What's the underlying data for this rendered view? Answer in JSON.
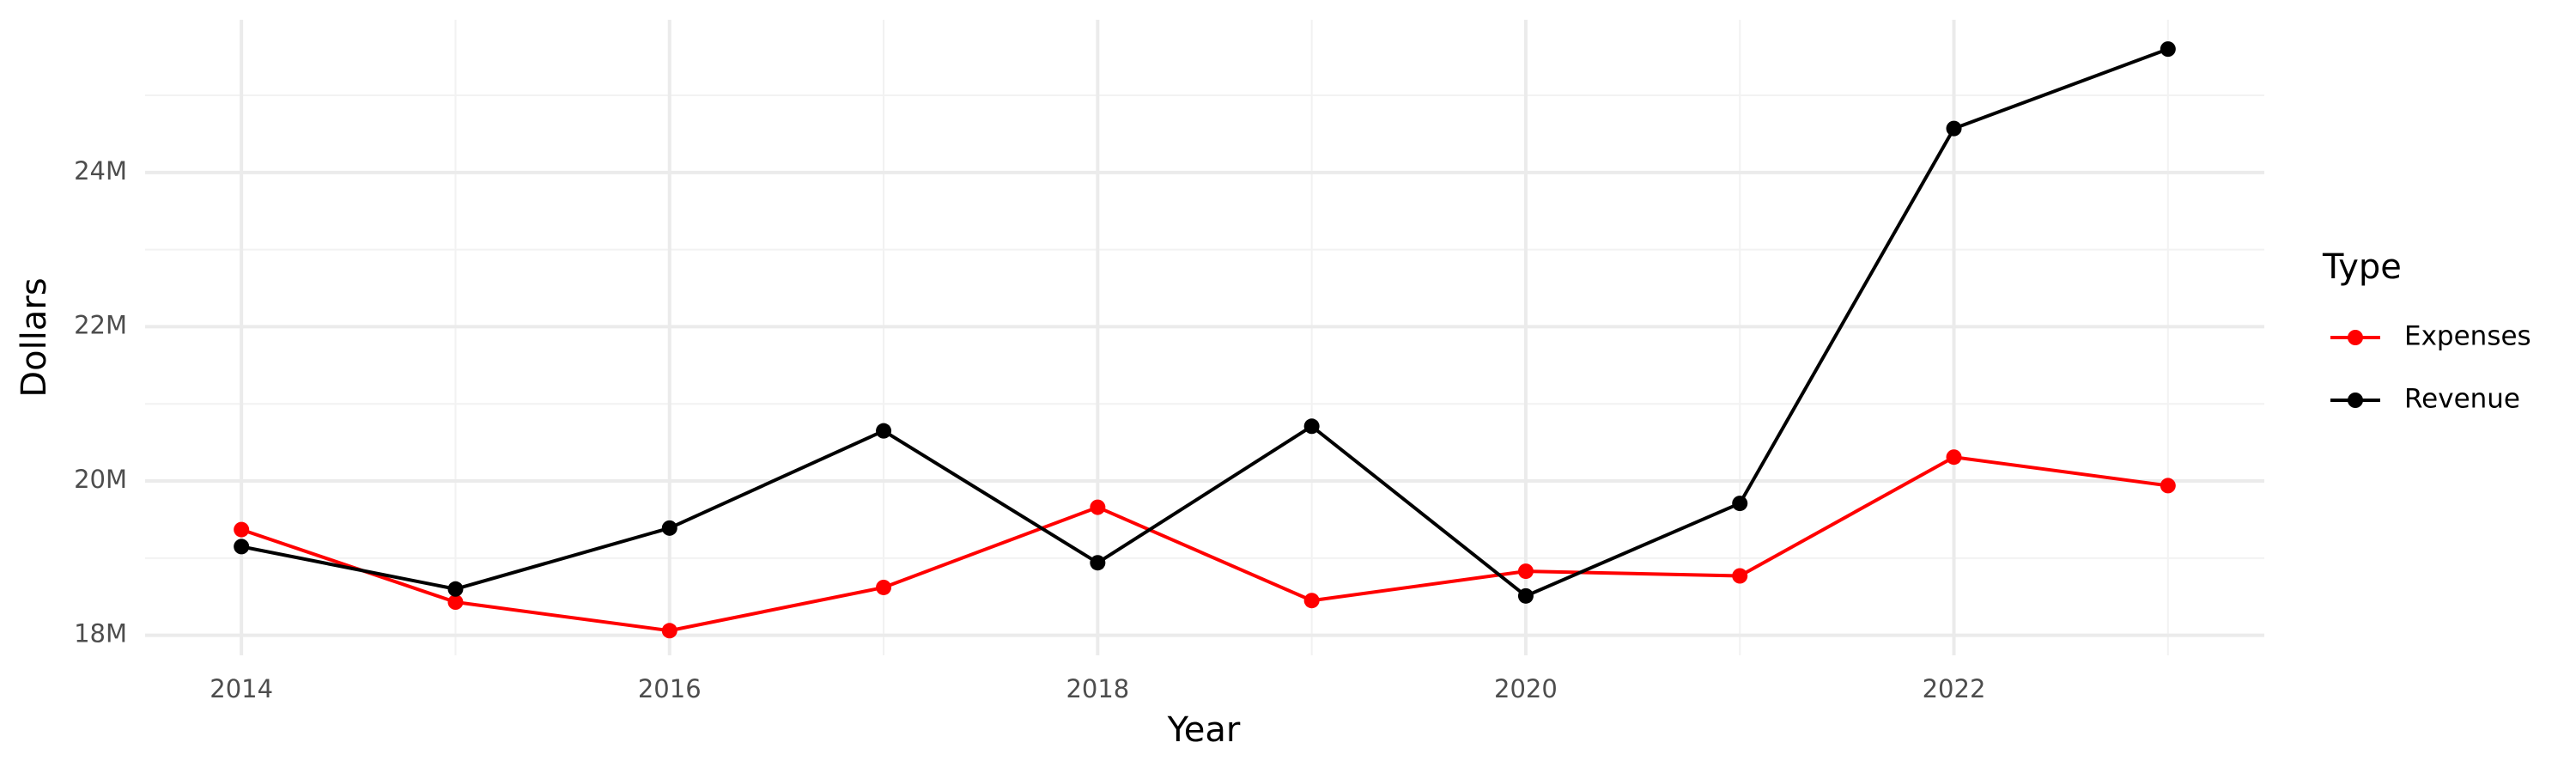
{
  "chart_data": {
    "type": "line",
    "x_label": "Year",
    "y_label": "Dollars",
    "legend_title": "Type",
    "legend": "right",
    "x": [
      2014,
      2015,
      2016,
      2017,
      2018,
      2019,
      2020,
      2021,
      2022,
      2023
    ],
    "series": [
      {
        "name": "Expenses",
        "color": "#ff0000",
        "values": [
          19370000,
          18430000,
          18060000,
          18620000,
          19660000,
          18450000,
          18830000,
          18770000,
          20310000,
          19940000
        ]
      },
      {
        "name": "Revenue",
        "color": "#000000",
        "values": [
          19150000,
          18600000,
          19390000,
          20650000,
          18940000,
          20710000,
          18510000,
          19710000,
          24570000,
          25600000
        ]
      }
    ],
    "xlim": [
      2013.55,
      2023.45
    ],
    "xticks": [
      2014,
      2016,
      2018,
      2020,
      2022
    ],
    "minor_xticks": [
      2015,
      2017,
      2019,
      2021,
      2023
    ],
    "ylim": [
      17740000,
      25980000
    ],
    "yticks": [
      {
        "value": 18000000,
        "label": "18M"
      },
      {
        "value": 20000000,
        "label": "20M"
      },
      {
        "value": 22000000,
        "label": "22M"
      },
      {
        "value": 24000000,
        "label": "24M"
      }
    ],
    "minor_yticks": [
      19000000,
      21000000,
      23000000,
      25000000
    ],
    "grid": true
  }
}
